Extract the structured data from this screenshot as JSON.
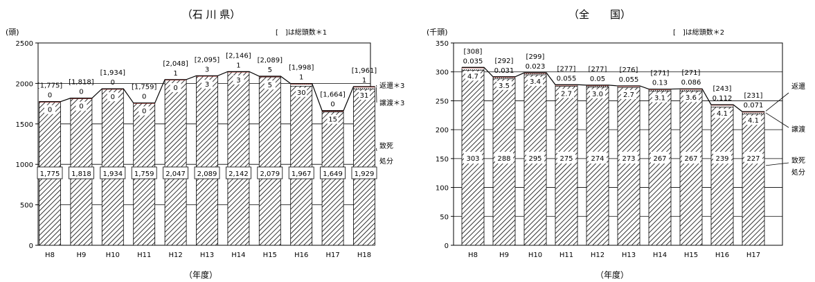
{
  "colors": {
    "line": "#000000",
    "accent": "#c0504d",
    "hatch": "#000000",
    "bg": "#ffffff"
  },
  "chart_data": [
    {
      "type": "bar",
      "title": "（石 川 県）",
      "ylabel": "(頭)",
      "xlabel": "（年度）",
      "note": "[　]は総頭数＊1",
      "ylim": [
        0,
        2500
      ],
      "yticks": [
        0,
        500,
        1000,
        1500,
        2000,
        2500
      ],
      "categories": [
        "H8",
        "H9",
        "H10",
        "H11",
        "H12",
        "H13",
        "H14",
        "H15",
        "H16",
        "H17",
        "H18"
      ],
      "totals_labels": [
        "[1,775]",
        "[1,818]",
        "[1,934]",
        "[1,759]",
        "[2,048]",
        "[2,095]",
        "[2,146]",
        "[2,089]",
        "[1,998]",
        "[1,664]",
        "[1,961]"
      ],
      "series": [
        {
          "name": "致死処分",
          "values": [
            1775,
            1818,
            1934,
            1759,
            2047,
            2089,
            2142,
            2079,
            1967,
            1649,
            1929
          ],
          "labels": [
            "1,775",
            "1,818",
            "1,934",
            "1,759",
            "2,047",
            "2,089",
            "2,142",
            "2,079",
            "1,967",
            "1,649",
            "1,929"
          ]
        },
        {
          "name": "譲渡＊3",
          "values": [
            0,
            0,
            0,
            0,
            0,
            3,
            3,
            5,
            30,
            15,
            31
          ],
          "labels": [
            "0",
            "0",
            "0",
            "0",
            "0",
            "3",
            "3",
            "5",
            "30",
            "15",
            "31"
          ]
        },
        {
          "name": "返還＊3",
          "values": [
            0,
            0,
            0,
            0,
            1,
            3,
            1,
            5,
            1,
            0,
            1
          ],
          "labels": [
            "0",
            "0",
            "0",
            "0",
            "1",
            "3",
            "1",
            "5",
            "1",
            "0",
            "1"
          ]
        }
      ],
      "legend": [
        "返還＊3",
        "譲渡＊3",
        "致死",
        "処分"
      ]
    },
    {
      "type": "bar",
      "title": "（全　　国）",
      "ylabel": "(千頭)",
      "xlabel": "（年度）",
      "note": "[　]は総頭数＊2",
      "ylim": [
        0,
        350
      ],
      "yticks": [
        0,
        50,
        100,
        150,
        200,
        250,
        300,
        350
      ],
      "categories": [
        "H8",
        "H9",
        "H10",
        "H11",
        "H12",
        "H13",
        "H14",
        "H15",
        "H16",
        "H17"
      ],
      "totals_labels": [
        "[308]",
        "[292]",
        "[299]",
        "[277]",
        "[277]",
        "[276]",
        "[271]",
        "[271]",
        "[243]",
        "[231]"
      ],
      "series": [
        {
          "name": "致死処分",
          "values": [
            303,
            288,
            295,
            275,
            274,
            273,
            267,
            267,
            239,
            227
          ],
          "labels": [
            "303",
            "288",
            "295",
            "275",
            "274",
            "273",
            "267",
            "267",
            "239",
            "227"
          ]
        },
        {
          "name": "譲渡",
          "values": [
            4.7,
            3.5,
            3.4,
            2.7,
            3.0,
            2.7,
            3.1,
            3.6,
            4.1,
            4.1
          ],
          "labels": [
            "4.7",
            "3.5",
            "3.4",
            "2.7",
            "3.0",
            "2.7",
            "3.1",
            "3.6",
            "4.1",
            "4.1"
          ]
        },
        {
          "name": "返還",
          "values": [
            0.035,
            0.031,
            0.023,
            0.055,
            0.05,
            0.055,
            0.13,
            0.086,
            0.112,
            0.071
          ],
          "labels": [
            "0.035",
            "0.031",
            "0.023",
            "0.055",
            "0.05",
            "0.055",
            "0.13",
            "0.086",
            "0.112",
            "0.071"
          ]
        }
      ],
      "legend": [
        "返還",
        "譲渡",
        "致死",
        "処分"
      ]
    }
  ]
}
